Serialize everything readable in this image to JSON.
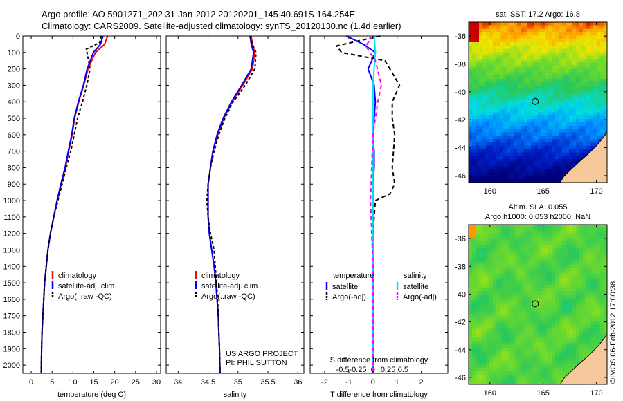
{
  "header": {
    "title_line1": "Argo profile: AO 5901271_202 31-Jan-2012 20120201_145 40.691S 164.254E",
    "title_line2": "Climatology: CARS2009. Satellite-adjusted climatology: synTS_20120130.nc (1.4d earlier)"
  },
  "timestamp": "©IMOS 06-Feb-2012 17:00:38",
  "colors": {
    "clim": "#ff0000",
    "sat": "#0000ff",
    "argo": "#000000",
    "salsat": "#00e5ee",
    "salargo": "#ff00ff",
    "land": "#f5c99b"
  },
  "chart_data": [
    {
      "type": "line",
      "id": "temperature",
      "xlabel": "temperature (deg C)",
      "ylabel": "",
      "xlim": [
        -2,
        31
      ],
      "ylim": [
        2050,
        0
      ],
      "xticks": [
        0,
        5,
        10,
        15,
        20,
        25,
        30
      ],
      "yticks": [
        0,
        100,
        200,
        300,
        400,
        500,
        600,
        700,
        800,
        900,
        1000,
        1100,
        1200,
        1300,
        1400,
        1500,
        1600,
        1700,
        1800,
        1900,
        2000
      ],
      "legend": [
        "climatology",
        "satellite-adj. clim.",
        "Argo(..raw -QC)"
      ],
      "series": [
        {
          "name": "climatology",
          "color": "#ff0000",
          "dash": "",
          "x": [
            18.3,
            17.6,
            15.4,
            13.6,
            12.6,
            11.4,
            10.4,
            9.8,
            9.0,
            8.2,
            7.2,
            6.2,
            5.4,
            4.6,
            4.0,
            3.6,
            3.2,
            3.0,
            2.8,
            2.6,
            2.5,
            2.4
          ],
          "y": [
            0,
            50,
            100,
            200,
            300,
            400,
            500,
            600,
            700,
            800,
            900,
            1000,
            1100,
            1200,
            1300,
            1400,
            1500,
            1600,
            1700,
            1800,
            1900,
            2050
          ]
        },
        {
          "name": "satellite-adj. clim.",
          "color": "#0000ff",
          "dash": "",
          "x": [
            17.2,
            16.6,
            14.9,
            13.4,
            12.5,
            11.3,
            10.3,
            9.7,
            8.9,
            8.1,
            7.1,
            6.2,
            5.4,
            4.6,
            4.0,
            3.6,
            3.2,
            3.0,
            2.8,
            2.6,
            2.5,
            2.4
          ],
          "y": [
            0,
            50,
            100,
            200,
            300,
            400,
            500,
            600,
            700,
            800,
            900,
            1000,
            1100,
            1200,
            1300,
            1400,
            1500,
            1600,
            1700,
            1800,
            1900,
            2050
          ]
        },
        {
          "name": "Argo(..raw -QC)",
          "color": "#000000",
          "dash": "4,3",
          "x": [
            16.8,
            16.4,
            13.2,
            14.1,
            13.3,
            12.3,
            11.1,
            10.3,
            9.5,
            8.4,
            7.4,
            6.4,
            5.4,
            4.6,
            4.0,
            3.6,
            3.2,
            3.0,
            2.8,
            2.6,
            2.5,
            2.4
          ],
          "y": [
            0,
            40,
            80,
            200,
            300,
            400,
            500,
            600,
            700,
            800,
            900,
            1000,
            1100,
            1200,
            1300,
            1400,
            1500,
            1600,
            1700,
            1800,
            1900,
            2050
          ]
        }
      ]
    },
    {
      "type": "line",
      "id": "salinity",
      "xlabel": "salinity",
      "ylabel": "",
      "xlim": [
        33.8,
        36.1
      ],
      "ylim": [
        2050,
        0
      ],
      "xticks": [
        34,
        34.5,
        35,
        35.5,
        36
      ],
      "legend": [
        "climatology",
        "satellite-adj. clim.",
        "Argo(..raw -QC)"
      ],
      "annotations": [
        "US ARGO PROJECT",
        "PI: PHIL SUTTON"
      ],
      "series": [
        {
          "name": "climatology",
          "color": "#ff0000",
          "dash": "",
          "x": [
            35.22,
            35.24,
            35.28,
            35.24,
            35.08,
            34.9,
            34.76,
            34.66,
            34.58,
            34.54,
            34.5,
            34.5,
            34.5,
            34.52,
            34.56,
            34.6,
            34.63,
            34.65,
            34.67,
            34.68,
            34.69,
            34.7
          ],
          "y": [
            0,
            50,
            100,
            200,
            300,
            400,
            500,
            600,
            700,
            800,
            900,
            1000,
            1100,
            1200,
            1300,
            1400,
            1500,
            1600,
            1700,
            1800,
            1900,
            2050
          ]
        },
        {
          "name": "satellite-adj. clim.",
          "color": "#0000ff",
          "dash": "",
          "x": [
            35.2,
            35.22,
            35.26,
            35.22,
            35.06,
            34.89,
            34.75,
            34.65,
            34.58,
            34.54,
            34.5,
            34.5,
            34.5,
            34.52,
            34.56,
            34.6,
            34.63,
            34.65,
            34.67,
            34.68,
            34.69,
            34.7
          ],
          "y": [
            0,
            50,
            100,
            200,
            300,
            400,
            500,
            600,
            700,
            800,
            900,
            1000,
            1100,
            1200,
            1300,
            1400,
            1500,
            1600,
            1700,
            1800,
            1900,
            2050
          ]
        },
        {
          "name": "Argo(..raw -QC)",
          "color": "#000000",
          "dash": "4,3",
          "x": [
            35.2,
            35.24,
            35.3,
            35.28,
            35.12,
            34.92,
            34.78,
            34.68,
            34.6,
            34.54,
            34.5,
            34.48,
            34.5,
            34.54,
            34.6,
            34.62,
            34.64,
            34.66,
            34.67,
            34.68,
            34.69,
            34.7
          ],
          "y": [
            0,
            50,
            100,
            200,
            300,
            400,
            500,
            600,
            700,
            800,
            900,
            1000,
            1100,
            1200,
            1300,
            1400,
            1500,
            1600,
            1700,
            1800,
            1900,
            2050
          ]
        }
      ]
    },
    {
      "type": "line",
      "id": "difference",
      "xlabel": "T difference from climatology",
      "x2label": "S difference from climatology",
      "xlim": [
        -2.6,
        3.1
      ],
      "ylim": [
        2050,
        0
      ],
      "xticks": [
        -2,
        -1,
        0,
        1,
        2
      ],
      "xticklabels": [
        "-2",
        "-1",
        "0",
        "1",
        "2"
      ],
      "x2ticks": [
        -1.25,
        -0.625,
        0,
        0.625,
        1.25
      ],
      "x2ticklabels": [
        "-0.5",
        "-0.25",
        "0",
        "0.25",
        "0.5"
      ],
      "legend_temperature": {
        "title": "temperature",
        "entries": [
          "satellite",
          "Argo(-adj)"
        ]
      },
      "legend_salinity": {
        "title": "salinity",
        "entries": [
          "satellite",
          "Argo(-adj)"
        ]
      },
      "series": [
        {
          "name": "temperature satellite",
          "color": "#0000ff",
          "dash": "",
          "x": [
            -1.1,
            -0.4,
            0.1,
            -0.2,
            0.05,
            0.1,
            0.05,
            0.0,
            0.05,
            0.05,
            0.0,
            0.0,
            0.0,
            0.0,
            0.0,
            0.0,
            0.0,
            0.0,
            0.0
          ],
          "y": [
            0,
            50,
            100,
            200,
            300,
            400,
            500,
            600,
            700,
            800,
            900,
            1000,
            1200,
            1400,
            1600,
            1700,
            1800,
            1900,
            2050
          ]
        },
        {
          "name": "temperature Argo(-adj)",
          "color": "#000000",
          "dash": "6,4",
          "x": [
            0.3,
            -1.5,
            -1.3,
            0.5,
            1.1,
            0.8,
            0.8,
            0.9,
            0.8,
            0.9,
            0.7,
            0.1,
            0.0,
            0.0,
            0.0,
            0.0,
            0.0,
            0.0
          ],
          "y": [
            0,
            60,
            100,
            150,
            300,
            400,
            500,
            600,
            800,
            900,
            960,
            1000,
            1200,
            1400,
            1600,
            1800,
            1900,
            2050
          ]
        },
        {
          "name": "salinity satellite",
          "color": "#00e5ee",
          "dash": "",
          "x": [
            0.05,
            0.1,
            0.05,
            0.0,
            0.0,
            0.0,
            0.0,
            0.0,
            0.0,
            0.0,
            0.0,
            0.0,
            0.0,
            0.0
          ],
          "y": [
            0,
            100,
            200,
            300,
            400,
            600,
            800,
            1000,
            1200,
            1400,
            1600,
            1800,
            1900,
            2050
          ]
        },
        {
          "name": "salinity Argo(-adj)",
          "color": "#ff00ff",
          "dash": "6,4",
          "x": [
            0.0,
            -0.3,
            0.1,
            0.35,
            0.2,
            0.0,
            -0.05,
            -0.1,
            -0.05,
            0.0,
            0.0,
            0.0,
            0.0
          ],
          "y": [
            0,
            60,
            150,
            300,
            400,
            600,
            800,
            1000,
            1200,
            1400,
            1600,
            1800,
            2050
          ]
        }
      ]
    },
    {
      "type": "heatmap",
      "id": "sst-map",
      "title": "sat. SST: 17.2 Argo: 16.8",
      "xlim": [
        158,
        171
      ],
      "ylim": [
        -46.5,
        -35
      ],
      "xticks": [
        160,
        165,
        170
      ],
      "yticks": [
        -36,
        -38,
        -40,
        -42,
        -44,
        -46
      ],
      "marker": [
        164.254,
        -40.691
      ]
    },
    {
      "type": "heatmap",
      "id": "sla-map",
      "title_line1": "Altim. SLA: 0.055",
      "title_line2": "Argo h1000: 0.053 h2000: NaN",
      "xlim": [
        158,
        171
      ],
      "ylim": [
        -46.5,
        -35
      ],
      "xticks": [
        160,
        165,
        170
      ],
      "yticks": [
        -36,
        -38,
        -40,
        -42,
        -44,
        -46
      ],
      "marker": [
        164.254,
        -40.691
      ]
    }
  ]
}
